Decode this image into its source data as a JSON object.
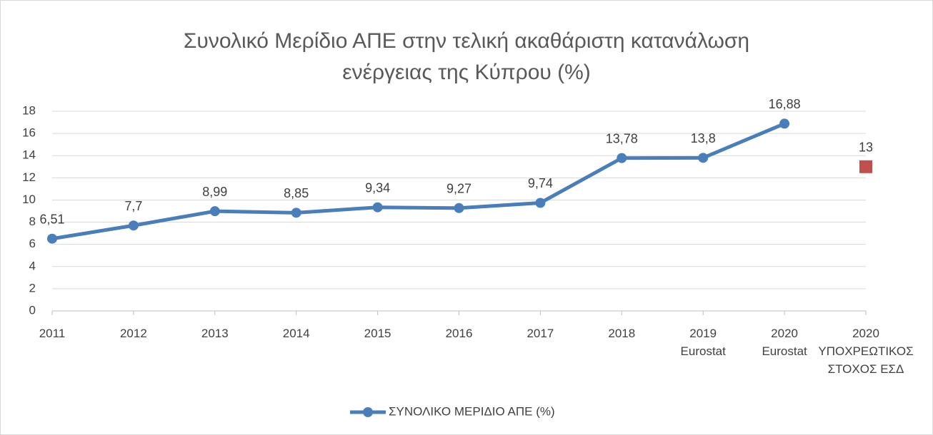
{
  "chart_data": {
    "type": "line",
    "title": "Συνολικό Μερίδιο ΑΠΕ στην τελική ακαθάριστη κατανάλωση\nενέργειας της Κύπρου (%)",
    "categories": [
      "2011",
      "2012",
      "2013",
      "2014",
      "2015",
      "2016",
      "2017",
      "2018",
      "2019\nEurostat",
      "2020\nEurostat",
      "2020\nΥΠΟΧΡΕΩΤΙΚΟΣ\nΣΤΟΧΟΣ ΕΣΔ"
    ],
    "series": [
      {
        "name": "ΣΥΝΟΛΙΚΟ ΜΕΡΙΔΙΟ ΑΠΕ (%)",
        "color": "#4a7ebb",
        "marker": "circle",
        "values": [
          6.51,
          7.7,
          8.99,
          8.85,
          9.34,
          9.27,
          9.74,
          13.78,
          13.8,
          16.88,
          null
        ],
        "value_labels": [
          "6,51",
          "7,7",
          "8,99",
          "8,85",
          "9,34",
          "9,27",
          "9,74",
          "13,78",
          "13,8",
          "16,88",
          null
        ]
      },
      {
        "color": "#c0504d",
        "marker": "square",
        "values": [
          null,
          null,
          null,
          null,
          null,
          null,
          null,
          null,
          null,
          null,
          13
        ]
      }
    ],
    "ylim": [
      0,
      18
    ],
    "yticks": [
      0,
      2,
      4,
      6,
      8,
      10,
      12,
      14,
      16,
      18
    ],
    "grid": true,
    "legend": "bottom"
  }
}
